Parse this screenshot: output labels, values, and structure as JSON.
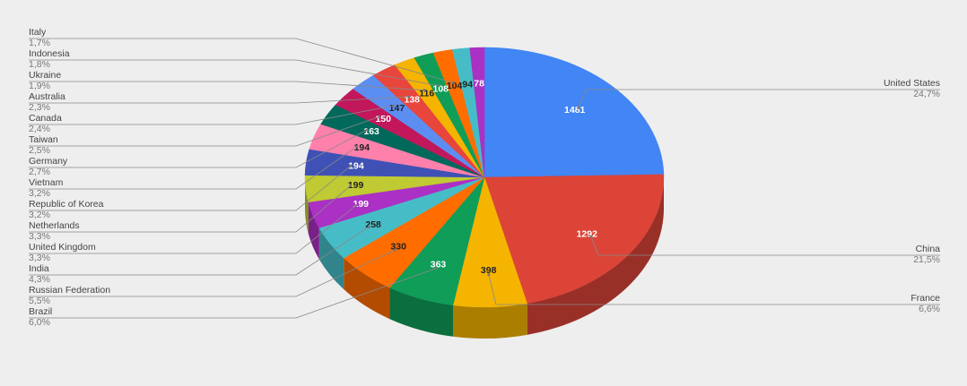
{
  "chart_data": {
    "type": "pie3d",
    "categories": [
      "United States",
      "China",
      "France",
      "Brazil",
      "Russian Federation",
      "India",
      "United Kingdom",
      "Netherlands",
      "Republic of Korea",
      "Vietnam",
      "Germany",
      "Taiwan",
      "Canada",
      "Australia",
      "Ukraine",
      "Indonesia",
      "Italy",
      null,
      null
    ],
    "values": [
      1481,
      1292,
      398,
      363,
      330,
      258,
      199,
      199,
      194,
      194,
      163,
      150,
      147,
      138,
      116,
      108,
      104,
      94,
      78
    ],
    "percent_labels": [
      "24,7%",
      "21,5%",
      "6,6%",
      "6,0%",
      "5,5%",
      "4,3%",
      "3,3%",
      "3,3%",
      "3,2%",
      "3,2%",
      "2,7%",
      "2,5%",
      "2,4%",
      "2,3%",
      "1,9%",
      "1,8%",
      "1,7%",
      null,
      null
    ],
    "colors": [
      "#4285f4",
      "#db4437",
      "#f4b400",
      "#0f9d58",
      "#ff6d01",
      "#46bdc6",
      "#ab30c4",
      "#c0ca33",
      "#3f51b5",
      "#ff80ab",
      "#00695c",
      "#c2185b",
      "#5c8ef2",
      "#e8453c",
      "#f4b400",
      "#0f9d58",
      "#ff6d01",
      "#46bdc6",
      "#ab30c4"
    ]
  }
}
